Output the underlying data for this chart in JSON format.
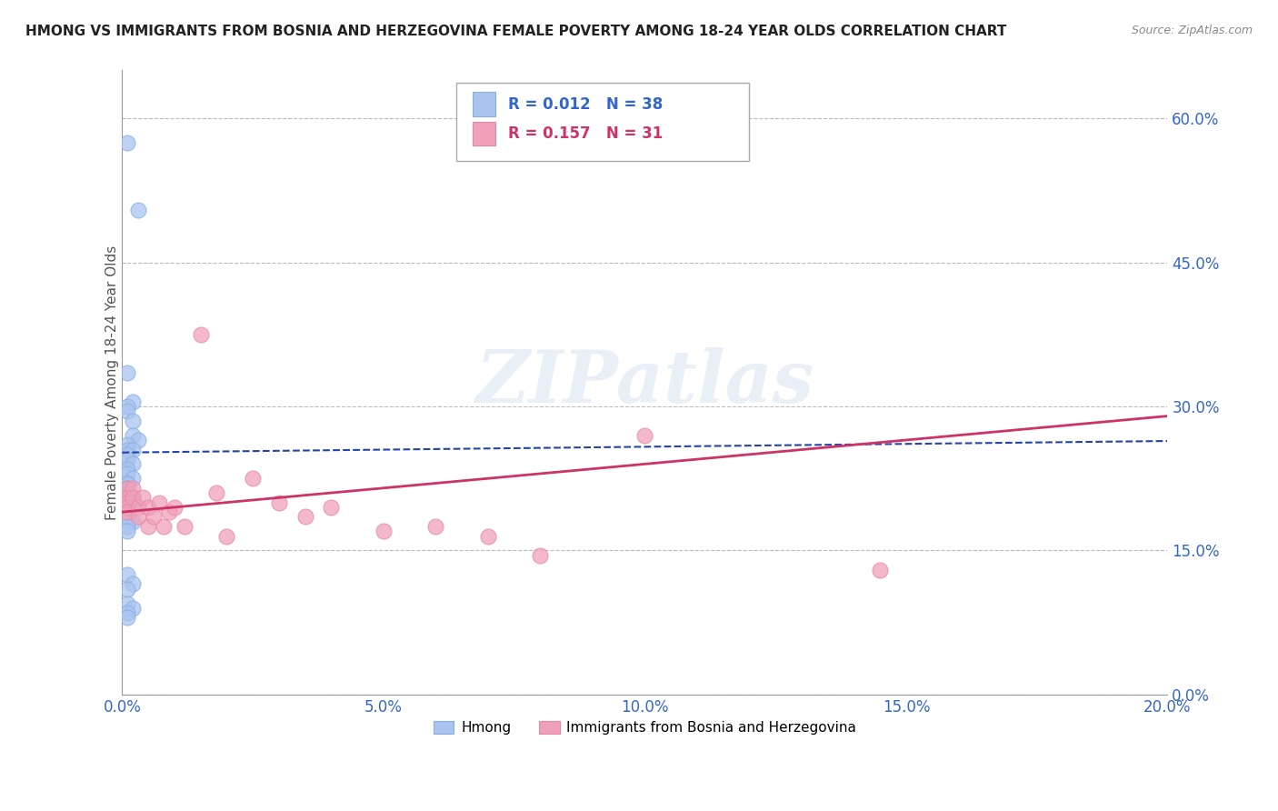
{
  "title": "HMONG VS IMMIGRANTS FROM BOSNIA AND HERZEGOVINA FEMALE POVERTY AMONG 18-24 YEAR OLDS CORRELATION CHART",
  "source": "Source: ZipAtlas.com",
  "ylabel": "Female Poverty Among 18-24 Year Olds",
  "xlim": [
    0.0,
    0.2
  ],
  "ylim": [
    0.0,
    0.65
  ],
  "xticks": [
    0.0,
    0.05,
    0.1,
    0.15,
    0.2
  ],
  "xticklabels": [
    "0.0%",
    "5.0%",
    "10.0%",
    "15.0%",
    "20.0%"
  ],
  "yticks": [
    0.0,
    0.15,
    0.3,
    0.45,
    0.6
  ],
  "yticklabels": [
    "0.0%",
    "15.0%",
    "30.0%",
    "45.0%",
    "60.0%"
  ],
  "hmong_color": "#a8c4f0",
  "bosnia_color": "#f0a0b8",
  "trend1_color": "#2244aa",
  "trend2_color": "#cc3366",
  "background_color": "#ffffff",
  "grid_color": "#bbbbbb",
  "watermark": "ZIPatlas",
  "hmong_x": [
    0.001,
    0.003,
    0.001,
    0.002,
    0.001,
    0.001,
    0.002,
    0.002,
    0.003,
    0.001,
    0.001,
    0.002,
    0.001,
    0.001,
    0.002,
    0.001,
    0.001,
    0.002,
    0.001,
    0.001,
    0.001,
    0.001,
    0.001,
    0.002,
    0.002,
    0.001,
    0.001,
    0.001,
    0.002,
    0.001,
    0.001,
    0.001,
    0.002,
    0.001,
    0.001,
    0.002,
    0.001,
    0.001
  ],
  "hmong_y": [
    0.575,
    0.505,
    0.335,
    0.305,
    0.3,
    0.295,
    0.285,
    0.27,
    0.265,
    0.26,
    0.255,
    0.255,
    0.25,
    0.245,
    0.24,
    0.235,
    0.23,
    0.225,
    0.22,
    0.22,
    0.215,
    0.21,
    0.21,
    0.205,
    0.2,
    0.195,
    0.195,
    0.185,
    0.18,
    0.175,
    0.17,
    0.125,
    0.115,
    0.11,
    0.095,
    0.09,
    0.085,
    0.08
  ],
  "bosnia_x": [
    0.001,
    0.001,
    0.001,
    0.001,
    0.001,
    0.002,
    0.002,
    0.003,
    0.003,
    0.004,
    0.005,
    0.005,
    0.006,
    0.007,
    0.008,
    0.009,
    0.01,
    0.012,
    0.015,
    0.018,
    0.02,
    0.025,
    0.03,
    0.035,
    0.04,
    0.05,
    0.06,
    0.07,
    0.08,
    0.1,
    0.145
  ],
  "bosnia_y": [
    0.215,
    0.205,
    0.2,
    0.195,
    0.19,
    0.215,
    0.205,
    0.195,
    0.185,
    0.205,
    0.195,
    0.175,
    0.185,
    0.2,
    0.175,
    0.19,
    0.195,
    0.175,
    0.375,
    0.21,
    0.165,
    0.225,
    0.2,
    0.185,
    0.195,
    0.17,
    0.175,
    0.165,
    0.145,
    0.27,
    0.13
  ],
  "hmong_trend": [
    0.252,
    0.264
  ],
  "bosnia_trend": [
    0.19,
    0.29
  ],
  "legend_text1": "R = 0.012   N = 38",
  "legend_text2": "R = 0.157   N = 31"
}
